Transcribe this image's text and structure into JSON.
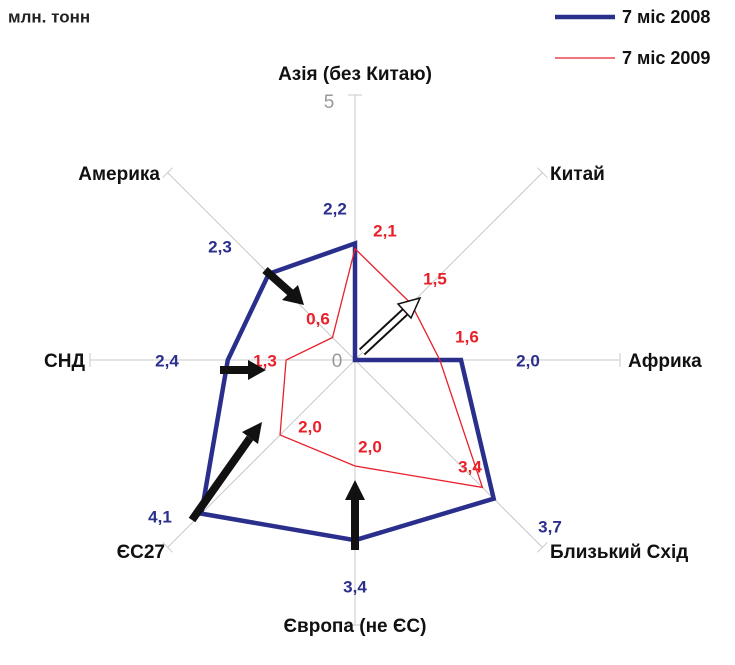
{
  "chart_data": {
    "type": "radar",
    "unit_label": "млн. тонн",
    "categories": [
      "Азія (без Китаю)",
      "Китай",
      "Африка",
      "Близький Схід",
      "Європа (не ЄС)",
      "ЄС27",
      "СНД",
      "Америка"
    ],
    "series": [
      {
        "name": "7 міс 2008",
        "color": "#2b2f8c",
        "values": [
          2.2,
          0,
          2.0,
          3.7,
          3.4,
          4.1,
          2.4,
          2.3
        ],
        "value_labels": [
          "2,2",
          null,
          "2,0",
          "3,7",
          "3,4",
          "4,1",
          "2,4",
          "2,3"
        ]
      },
      {
        "name": "7 міс 2009",
        "color": "#e8202a",
        "values": [
          2.1,
          1.5,
          1.6,
          3.4,
          2.0,
          2.0,
          1.3,
          0.6
        ],
        "value_labels": [
          "2,1",
          "1,5",
          "1,6",
          "3,4",
          "2,0",
          "2,0",
          "1,3",
          "0,6"
        ]
      }
    ],
    "ylim": [
      0,
      5
    ],
    "yticks": [
      0,
      5
    ],
    "legend": "top-right"
  }
}
